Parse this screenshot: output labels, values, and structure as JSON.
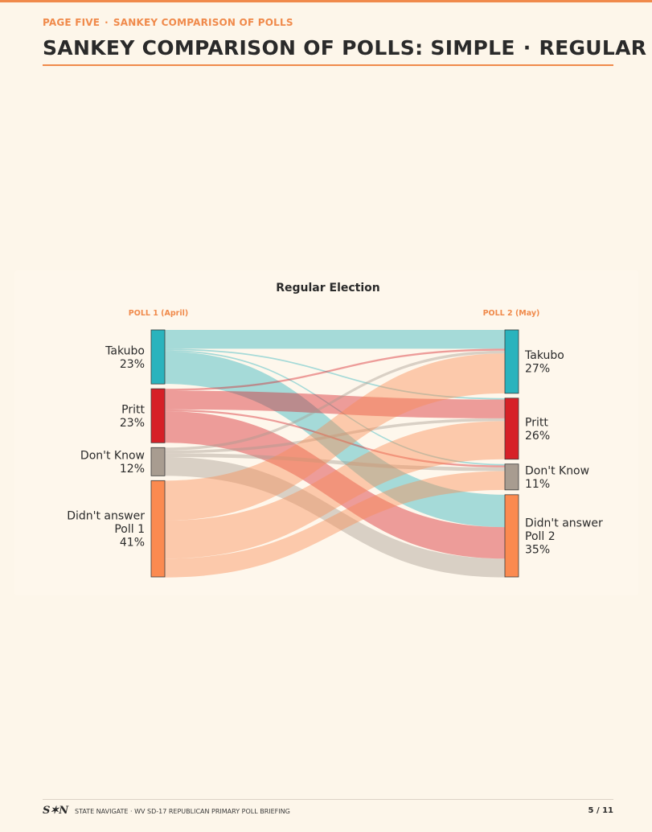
{
  "header": {
    "kicker_page": "PAGE FIVE",
    "kicker_section": "SANKEY COMPARISON OF POLLS",
    "separator": "·",
    "title_main": "SANKEY COMPARISON OF POLLS: SIMPLE",
    "title_sub": "REGULAR"
  },
  "footer": {
    "logo": "S✶N",
    "text": "STATE NAVIGATE · WV SD-17 REPUBLICAN PRIMARY POLL BRIEFING",
    "page": "5 / 11"
  },
  "colors": {
    "accent": "#f08a4b",
    "takubo": "#2ab3bd",
    "pritt": "#d62027",
    "dont_know": "#a89c90",
    "didnt_answer": "#fb8a50"
  },
  "chart_data": {
    "type": "sankey",
    "title": "Regular Election",
    "left_header": "POLL 1 (April)",
    "right_header": "POLL 2 (May)",
    "left_nodes": [
      {
        "label_lines": [
          "Takubo"
        ],
        "pct": "23%",
        "value": 23,
        "color": "#2ab3bd"
      },
      {
        "label_lines": [
          "Pritt"
        ],
        "pct": "23%",
        "value": 23,
        "color": "#d62027"
      },
      {
        "label_lines": [
          "Don't Know"
        ],
        "pct": "12%",
        "value": 12,
        "color": "#a89c90"
      },
      {
        "label_lines": [
          "Didn't answer",
          "Poll 1"
        ],
        "pct": "41%",
        "value": 41,
        "color": "#fb8a50"
      }
    ],
    "right_nodes": [
      {
        "label_lines": [
          "Takubo"
        ],
        "pct": "27%",
        "value": 27,
        "color": "#2ab3bd"
      },
      {
        "label_lines": [
          "Pritt"
        ],
        "pct": "26%",
        "value": 26,
        "color": "#d62027"
      },
      {
        "label_lines": [
          "Don't Know"
        ],
        "pct": "11%",
        "value": 11,
        "color": "#a89c90"
      },
      {
        "label_lines": [
          "Didn't answer",
          "Poll 2"
        ],
        "pct": "35%",
        "value": 35,
        "color": "#fb8a50"
      }
    ],
    "flows": [
      {
        "source": 0,
        "target": 0,
        "value": 8
      },
      {
        "source": 0,
        "target": 1,
        "value": 0.6
      },
      {
        "source": 0,
        "target": 2,
        "value": 0.6
      },
      {
        "source": 0,
        "target": 3,
        "value": 13.8
      },
      {
        "source": 1,
        "target": 0,
        "value": 0.8
      },
      {
        "source": 1,
        "target": 1,
        "value": 8
      },
      {
        "source": 1,
        "target": 2,
        "value": 0.8
      },
      {
        "source": 1,
        "target": 3,
        "value": 13.4
      },
      {
        "source": 2,
        "target": 0,
        "value": 1.2
      },
      {
        "source": 2,
        "target": 1,
        "value": 1.2
      },
      {
        "source": 2,
        "target": 2,
        "value": 1.6
      },
      {
        "source": 2,
        "target": 3,
        "value": 8
      },
      {
        "source": 3,
        "target": 0,
        "value": 17
      },
      {
        "source": 3,
        "target": 1,
        "value": 16.2
      },
      {
        "source": 3,
        "target": 2,
        "value": 8
      },
      {
        "source": 3,
        "target": 3,
        "value": 0
      }
    ]
  }
}
